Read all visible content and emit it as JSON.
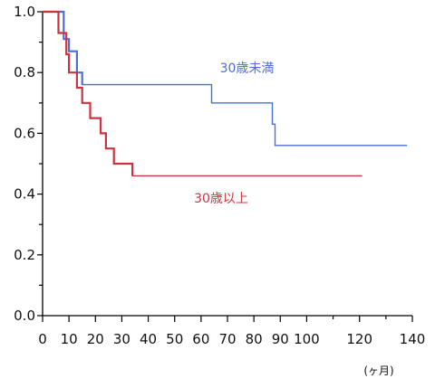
{
  "chart_data": {
    "type": "line",
    "title": "",
    "xlabel": "(ヶ月)",
    "ylabel": "",
    "xlim": [
      0,
      140
    ],
    "ylim": [
      0.0,
      1.0
    ],
    "x_ticks": [
      0,
      10,
      20,
      30,
      40,
      50,
      60,
      70,
      80,
      90,
      100,
      120,
      140
    ],
    "y_ticks": [
      0.0,
      0.2,
      0.4,
      0.6,
      0.8,
      1.0
    ],
    "y_tick_labels": [
      "0.0",
      "0.2",
      "0.4",
      "0.6",
      "0.8",
      "1.0"
    ],
    "grid": false,
    "series": [
      {
        "name": "30歳未満",
        "color": "#4a6fd8",
        "step": true,
        "points": [
          [
            0,
            1.0
          ],
          [
            8,
            1.0
          ],
          [
            8,
            0.91
          ],
          [
            10,
            0.91
          ],
          [
            10,
            0.87
          ],
          [
            13,
            0.87
          ],
          [
            13,
            0.8
          ],
          [
            15,
            0.8
          ],
          [
            15,
            0.76
          ],
          [
            64,
            0.76
          ],
          [
            64,
            0.7
          ],
          [
            87,
            0.7
          ],
          [
            87,
            0.63
          ],
          [
            88,
            0.63
          ],
          [
            88,
            0.56
          ],
          [
            138,
            0.56
          ]
        ]
      },
      {
        "name": "30歳以上",
        "color": "#cc3340",
        "step": true,
        "points": [
          [
            0,
            1.0
          ],
          [
            6,
            1.0
          ],
          [
            6,
            0.93
          ],
          [
            9,
            0.93
          ],
          [
            9,
            0.86
          ],
          [
            10,
            0.86
          ],
          [
            10,
            0.8
          ],
          [
            13,
            0.8
          ],
          [
            13,
            0.75
          ],
          [
            15,
            0.75
          ],
          [
            15,
            0.7
          ],
          [
            18,
            0.7
          ],
          [
            18,
            0.65
          ],
          [
            22,
            0.65
          ],
          [
            22,
            0.6
          ],
          [
            24,
            0.6
          ],
          [
            24,
            0.55
          ],
          [
            27,
            0.55
          ],
          [
            27,
            0.5
          ],
          [
            34,
            0.5
          ],
          [
            34,
            0.46
          ],
          [
            121,
            0.46
          ]
        ]
      }
    ]
  }
}
